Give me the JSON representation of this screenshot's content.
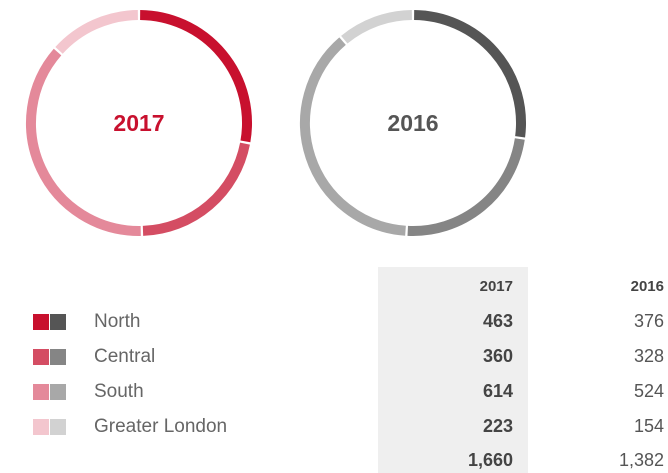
{
  "chart_data": [
    {
      "type": "pie",
      "title": "2017",
      "categories": [
        "North",
        "Central",
        "South",
        "Greater London"
      ],
      "values": [
        463,
        360,
        614,
        223
      ],
      "colors": [
        "#c8102e",
        "#d44d63",
        "#e4899a",
        "#f3c6ce"
      ],
      "title_color": "#c8102e"
    },
    {
      "type": "pie",
      "title": "2016",
      "categories": [
        "North",
        "Central",
        "South",
        "Greater London"
      ],
      "values": [
        376,
        328,
        524,
        154
      ],
      "colors": [
        "#555555",
        "#858585",
        "#a8a8a8",
        "#d2d2d2"
      ],
      "title_color": "#555555"
    }
  ],
  "table": {
    "totals": [
      "1,660",
      "1,382"
    ]
  }
}
